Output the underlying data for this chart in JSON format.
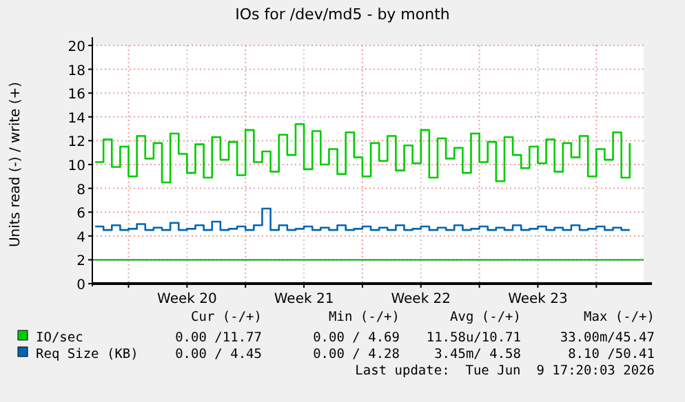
{
  "chart_data": {
    "type": "step",
    "title": "IOs for /dev/md5 - by month",
    "ylabel": "Units read (-) / write (+)",
    "xlim": [
      "2026-05-08T20:00",
      "2026-06-10T20:00"
    ],
    "xticks": [
      {
        "value": "2026-05-11",
        "label": null
      },
      {
        "value": "2026-05-14T12:00",
        "label": "Week 20"
      },
      {
        "value": "2026-05-18",
        "label": null
      },
      {
        "value": "2026-05-21T12:00",
        "label": "Week 21"
      },
      {
        "value": "2026-05-25",
        "label": null
      },
      {
        "value": "2026-05-28T12:00",
        "label": "Week 22"
      },
      {
        "value": "2026-06-01",
        "label": null
      },
      {
        "value": "2026-06-04T12:00",
        "label": "Week 23"
      },
      {
        "value": "2026-06-08",
        "label": null
      }
    ],
    "ylim": [
      0,
      20
    ],
    "yticks": [
      0,
      2,
      4,
      6,
      8,
      10,
      12,
      14,
      16,
      18,
      20
    ],
    "grid": true,
    "legend": "bottom left",
    "x": [
      "2026-05-09T00:00",
      "2026-05-09T12:00",
      "2026-05-10T00:00",
      "2026-05-10T12:00",
      "2026-05-11T00:00",
      "2026-05-11T12:00",
      "2026-05-12T00:00",
      "2026-05-12T12:00",
      "2026-05-13T00:00",
      "2026-05-13T12:00",
      "2026-05-14T00:00",
      "2026-05-14T12:00",
      "2026-05-15T00:00",
      "2026-05-15T12:00",
      "2026-05-16T00:00",
      "2026-05-16T12:00",
      "2026-05-17T00:00",
      "2026-05-17T12:00",
      "2026-05-18T00:00",
      "2026-05-18T12:00",
      "2026-05-19T00:00",
      "2026-05-19T12:00",
      "2026-05-20T00:00",
      "2026-05-20T12:00",
      "2026-05-21T00:00",
      "2026-05-21T12:00",
      "2026-05-22T00:00",
      "2026-05-22T12:00",
      "2026-05-23T00:00",
      "2026-05-23T12:00",
      "2026-05-24T00:00",
      "2026-05-24T12:00",
      "2026-05-25T00:00",
      "2026-05-25T12:00",
      "2026-05-26T00:00",
      "2026-05-26T12:00",
      "2026-05-27T00:00",
      "2026-05-27T12:00",
      "2026-05-28T00:00",
      "2026-05-28T12:00",
      "2026-05-29T00:00",
      "2026-05-29T12:00",
      "2026-05-30T00:00",
      "2026-05-30T12:00",
      "2026-05-31T00:00",
      "2026-05-31T12:00",
      "2026-06-01T00:00",
      "2026-06-01T12:00",
      "2026-06-02T00:00",
      "2026-06-02T12:00",
      "2026-06-03T00:00",
      "2026-06-03T12:00",
      "2026-06-04T00:00",
      "2026-06-04T12:00",
      "2026-06-05T00:00",
      "2026-06-05T12:00",
      "2026-06-06T00:00",
      "2026-06-06T12:00",
      "2026-06-07T00:00",
      "2026-06-07T12:00",
      "2026-06-08T00:00",
      "2026-06-08T12:00",
      "2026-06-09T00:00",
      "2026-06-09T12:00",
      "2026-06-10T00:00"
    ],
    "series": [
      {
        "name": "IO/sec",
        "color": "#00cc00",
        "values": [
          10.2,
          12.1,
          9.8,
          11.5,
          9.0,
          12.4,
          10.5,
          11.8,
          8.5,
          12.6,
          10.9,
          9.3,
          11.7,
          8.9,
          12.3,
          10.4,
          11.9,
          9.1,
          12.9,
          10.2,
          11.1,
          9.4,
          12.5,
          10.8,
          13.4,
          9.6,
          12.8,
          10.0,
          11.3,
          9.2,
          12.7,
          10.6,
          9.0,
          11.8,
          10.3,
          12.4,
          9.5,
          11.6,
          10.1,
          12.9,
          8.9,
          12.2,
          10.5,
          11.4,
          9.3,
          12.6,
          10.2,
          11.9,
          8.6,
          12.3,
          10.8,
          9.7,
          11.5,
          10.1,
          12.1,
          9.4,
          11.8,
          10.6,
          12.4,
          9.0,
          11.3,
          10.4,
          12.7,
          8.9,
          11.8
        ]
      },
      {
        "name": "Req Size (KB)",
        "color": "#0066b3",
        "values": [
          4.8,
          4.5,
          4.9,
          4.5,
          4.6,
          5.0,
          4.5,
          4.7,
          4.5,
          5.1,
          4.5,
          4.6,
          4.9,
          4.5,
          5.2,
          4.5,
          4.6,
          4.8,
          4.5,
          4.9,
          6.3,
          4.5,
          4.9,
          4.5,
          4.6,
          4.8,
          4.5,
          4.7,
          4.5,
          4.9,
          4.5,
          4.6,
          4.8,
          4.5,
          4.7,
          4.5,
          4.9,
          4.5,
          4.6,
          4.8,
          4.5,
          4.7,
          4.5,
          4.9,
          4.5,
          4.6,
          4.8,
          4.5,
          4.7,
          4.5,
          4.9,
          4.5,
          4.6,
          4.8,
          4.5,
          4.7,
          4.5,
          4.9,
          4.5,
          4.6,
          4.8,
          4.5,
          4.7,
          4.5,
          4.5
        ]
      }
    ],
    "ref_lines": [
      {
        "axis": "y",
        "value": 2,
        "color": "#00aa00"
      }
    ],
    "annotations": [
      "Cur (-/+)",
      "Min (-/+)",
      "Avg (-/+)",
      "Max (-/+)",
      "0.00 /11.77",
      "0.00 / 4.69",
      "11.58u/10.71",
      "33.00m/45.47",
      "0.00 / 4.45",
      "0.00 / 4.28",
      "3.45m/ 4.58",
      "8.10 /50.41",
      "Last update:  Tue Jun  9 17:20:03 2026"
    ]
  }
}
